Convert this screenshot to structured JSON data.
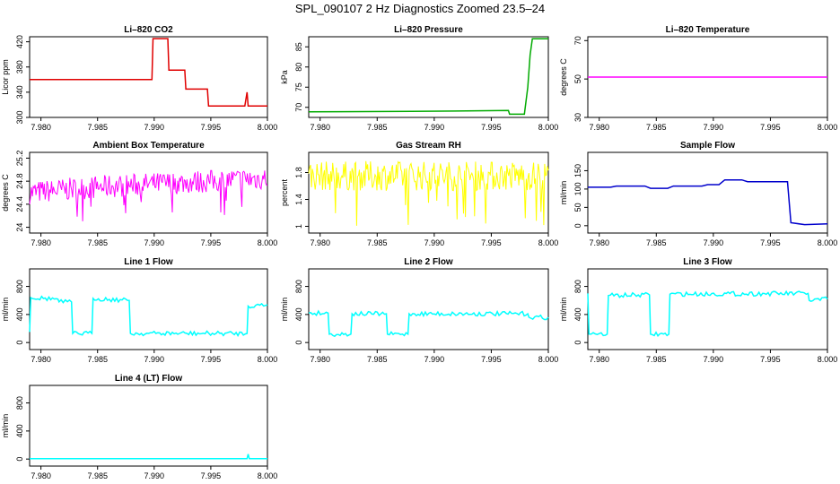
{
  "title": "SPL_090107  2 Hz Diagnostics Zoomed 23.5–24",
  "chart_data": [
    {
      "id": "co2",
      "type": "line",
      "title": "Li–820 CO2",
      "ylabel": "Licor ppm",
      "color": "#e00000",
      "xlim": [
        7.979,
        8.0
      ],
      "ylim": [
        300,
        428
      ],
      "xticks": [
        "7.980",
        "7.985",
        "7.990",
        "7.995",
        "8.000"
      ],
      "yticks": [
        300,
        340,
        380,
        420
      ],
      "series": [
        {
          "x": [
            7.979,
            7.9898,
            7.9899,
            7.9912,
            7.9913,
            7.9927,
            7.9928,
            7.9947,
            7.9948,
            7.997,
            7.998,
            7.9982,
            7.9983,
            8.0
          ],
          "y": [
            360,
            360,
            425,
            425,
            375,
            375,
            345,
            345,
            318,
            318,
            318,
            340,
            318,
            318
          ]
        }
      ]
    },
    {
      "id": "pressure",
      "type": "line",
      "title": "Li–820 Pressure",
      "ylabel": "kPa",
      "color": "#00aa00",
      "xlim": [
        7.979,
        8.0
      ],
      "ylim": [
        67.5,
        87.5
      ],
      "xticks": [
        "7.980",
        "7.985",
        "7.990",
        "7.995",
        "8.000"
      ],
      "yticks": [
        70,
        75,
        80,
        85
      ],
      "series": [
        {
          "x": [
            7.979,
            7.988,
            7.9965,
            7.9966,
            7.9979,
            7.9982,
            7.9984,
            7.9986,
            8.0
          ],
          "y": [
            68.9,
            69.0,
            69.2,
            68.3,
            68.3,
            75,
            83,
            87,
            87
          ]
        }
      ]
    },
    {
      "id": "temperature",
      "type": "line",
      "title": "Li–820 Temperature",
      "ylabel": "degrees C",
      "color": "#ff00ff",
      "xlim": [
        7.979,
        8.0
      ],
      "ylim": [
        30,
        72
      ],
      "xticks": [
        "7.980",
        "7.985",
        "7.990",
        "7.995",
        "8.000"
      ],
      "yticks": [
        30,
        50,
        70
      ],
      "series": [
        {
          "x": [
            7.979,
            8.0
          ],
          "y": [
            51,
            51
          ]
        }
      ]
    },
    {
      "id": "ambient",
      "type": "line",
      "title": "Ambient Box Temperature",
      "ylabel": "degrees C",
      "color": "#ff00ff",
      "xlim": [
        7.979,
        8.0
      ],
      "ylim": [
        23.9,
        25.3
      ],
      "xticks": [
        "7.980",
        "7.985",
        "7.990",
        "7.995",
        "8.000"
      ],
      "yticks": [
        24.0,
        24.4,
        24.8,
        25.2
      ],
      "series": [
        {
          "x": [
            7.979,
            7.985,
            7.99,
            7.995,
            8.0
          ],
          "y": [
            24.6,
            24.7,
            24.75,
            24.8,
            24.85
          ]
        }
      ]
    },
    {
      "id": "rh",
      "type": "line",
      "title": "Gas Stream RH",
      "ylabel": "percent",
      "color": "#ffff00",
      "xlim": [
        7.979,
        8.0
      ],
      "ylim": [
        0.9,
        2.1
      ],
      "xticks": [
        "7.980",
        "7.985",
        "7.990",
        "7.995",
        "8.000"
      ],
      "yticks": [
        1.0,
        1.4,
        1.8
      ],
      "series": [
        {
          "x": [
            7.979,
            8.0
          ],
          "y": [
            1.75,
            1.75
          ]
        }
      ]
    },
    {
      "id": "sample",
      "type": "line",
      "title": "Sample Flow",
      "ylabel": "ml/min",
      "color": "#0000cc",
      "xlim": [
        7.979,
        8.0
      ],
      "ylim": [
        -20,
        200
      ],
      "xticks": [
        "7.980",
        "7.985",
        "7.990",
        "7.995",
        "8.000"
      ],
      "yticks": [
        0,
        50,
        100,
        150
      ],
      "series": [
        {
          "x": [
            7.979,
            7.981,
            7.9815,
            7.984,
            7.9845,
            7.986,
            7.9865,
            7.989,
            7.9895,
            7.9905,
            7.991,
            7.9925,
            7.993,
            7.9965,
            7.9968,
            7.998,
            8.0
          ],
          "y": [
            105,
            105,
            108,
            108,
            102,
            102,
            108,
            108,
            112,
            112,
            125,
            125,
            120,
            120,
            8,
            3,
            5
          ]
        }
      ]
    },
    {
      "id": "line1",
      "type": "line",
      "title": "Line 1 Flow",
      "ylabel": "ml/min",
      "color": "#00ffff",
      "xlim": [
        7.979,
        8.0
      ],
      "ylim": [
        -100,
        1050
      ],
      "xticks": [
        "7.980",
        "7.985",
        "7.990",
        "7.995",
        "8.000"
      ],
      "yticks": [
        0,
        400,
        800
      ],
      "series": [
        {
          "x": [
            7.979,
            7.9791,
            7.9815,
            7.9816,
            7.9827,
            7.9828,
            7.9845,
            7.9846,
            7.9878,
            7.9879,
            7.9982,
            7.9983,
            8.0
          ],
          "y": [
            150,
            640,
            620,
            580,
            580,
            130,
            130,
            630,
            600,
            130,
            130,
            520,
            540
          ]
        }
      ]
    },
    {
      "id": "line2",
      "type": "line",
      "title": "Line 2 Flow",
      "ylabel": "ml/min",
      "color": "#00ffff",
      "xlim": [
        7.979,
        8.0
      ],
      "ylim": [
        -100,
        1050
      ],
      "xticks": [
        "7.980",
        "7.985",
        "7.990",
        "7.995",
        "8.000"
      ],
      "yticks": [
        0,
        400,
        800
      ],
      "series": [
        {
          "x": [
            7.979,
            7.9807,
            7.9808,
            7.9827,
            7.9828,
            7.9858,
            7.9859,
            7.9877,
            7.9878,
            7.9982,
            7.9983,
            8.0
          ],
          "y": [
            420,
            420,
            120,
            120,
            410,
            410,
            120,
            120,
            410,
            410,
            360,
            360
          ]
        }
      ]
    },
    {
      "id": "line3",
      "type": "line",
      "title": "Line 3 Flow",
      "ylabel": "ml/min",
      "color": "#00ffff",
      "xlim": [
        7.979,
        8.0
      ],
      "ylim": [
        -100,
        1050
      ],
      "xticks": [
        "7.980",
        "7.985",
        "7.990",
        "7.995",
        "8.000"
      ],
      "yticks": [
        0,
        400,
        800
      ],
      "series": [
        {
          "x": [
            7.979,
            7.9791,
            7.9793,
            7.9807,
            7.9808,
            7.9844,
            7.9845,
            7.9861,
            7.9862,
            7.9983,
            7.9984,
            8.0
          ],
          "y": [
            700,
            120,
            120,
            120,
            670,
            680,
            120,
            120,
            690,
            700,
            600,
            620
          ]
        }
      ]
    },
    {
      "id": "line4",
      "type": "line",
      "title": "Line 4 (LT) Flow",
      "ylabel": "ml/min",
      "color": "#00ffff",
      "xlim": [
        7.979,
        8.0
      ],
      "ylim": [
        -100,
        1050
      ],
      "xticks": [
        "7.980",
        "7.985",
        "7.990",
        "7.995",
        "8.000"
      ],
      "yticks": [
        0,
        400,
        800
      ],
      "series": [
        {
          "x": [
            7.979,
            7.9982,
            7.9983,
            7.9984,
            8.0
          ],
          "y": [
            5,
            5,
            70,
            5,
            5
          ]
        }
      ]
    }
  ]
}
